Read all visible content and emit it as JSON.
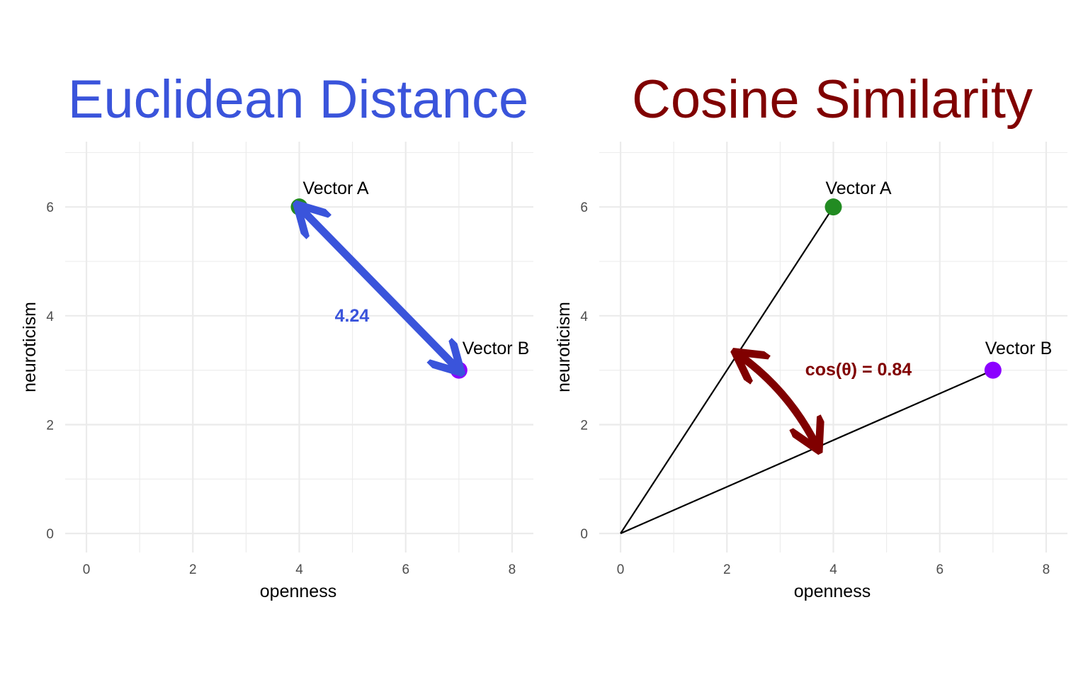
{
  "colors": {
    "vector_a": "#228B22",
    "vector_b": "#8B00FF",
    "euclidean": "#3A54DB",
    "cosine": "#800000",
    "grid": "#EBEBEB",
    "vector_line": "#000000"
  },
  "chart_data": [
    {
      "type": "scatter",
      "title": "Euclidean Distance",
      "title_color": "#3A54DB",
      "xlabel": "openness",
      "ylabel": "neuroticism",
      "xlim": [
        -0.4,
        8.4
      ],
      "ylim": [
        -0.35,
        7.2
      ],
      "xticks": [
        0,
        2,
        4,
        6,
        8
      ],
      "yticks": [
        0,
        2,
        4,
        6
      ],
      "grid": true,
      "points": [
        {
          "name": "Vector A",
          "x": 4,
          "y": 6,
          "color": "#228B22"
        },
        {
          "name": "Vector B",
          "x": 7,
          "y": 3,
          "color": "#8B00FF"
        }
      ],
      "distance_arrow": {
        "from": [
          4,
          6
        ],
        "to": [
          7,
          3
        ],
        "color": "#3A54DB"
      },
      "measure_label": {
        "text": "4.24",
        "x": 5,
        "y": 4.1,
        "color": "#3A54DB"
      }
    },
    {
      "type": "scatter",
      "title": "Cosine Similarity",
      "title_color": "#800000",
      "xlabel": "openness",
      "ylabel": "neuroticism",
      "xlim": [
        -0.4,
        8.4
      ],
      "ylim": [
        -0.35,
        7.2
      ],
      "xticks": [
        0,
        2,
        4,
        6,
        8
      ],
      "yticks": [
        0,
        2,
        4,
        6
      ],
      "grid": true,
      "points": [
        {
          "name": "Vector A",
          "x": 4,
          "y": 6,
          "color": "#228B22"
        },
        {
          "name": "Vector B",
          "x": 7,
          "y": 3,
          "color": "#8B00FF"
        }
      ],
      "vector_lines": [
        {
          "from": [
            0,
            0
          ],
          "to": [
            4,
            6
          ]
        },
        {
          "from": [
            0,
            0
          ],
          "to": [
            7,
            3
          ]
        }
      ],
      "angle_arrow": {
        "from": [
          2.2,
          3.3
        ],
        "to": [
          3.7,
          1.58
        ],
        "color": "#800000"
      },
      "measure_label": {
        "text": "cos(θ) = 0.84",
        "x": 4.5,
        "y": 3.0,
        "color": "#800000"
      }
    }
  ]
}
